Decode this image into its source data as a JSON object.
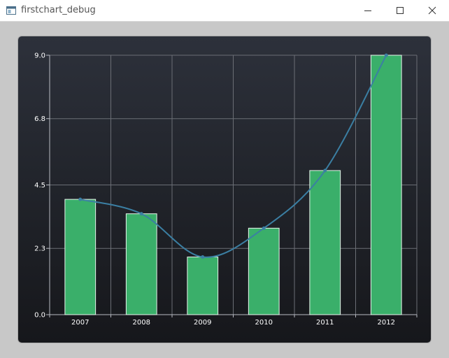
{
  "window": {
    "title": "firstchart_debug",
    "app_icon": "app-window-icon",
    "controls": {
      "minimize": "minimize-icon",
      "maximize": "maximize-icon",
      "close": "close-icon"
    }
  },
  "chart_data": {
    "type": "bar",
    "title": "",
    "xlabel": "",
    "ylabel": "",
    "categories": [
      "2007",
      "2008",
      "2009",
      "2010",
      "2011",
      "2012"
    ],
    "series": [
      {
        "type": "bar",
        "values": [
          4.0,
          3.5,
          2.0,
          3.0,
          5.0,
          9.0
        ],
        "color": "#3aaf6a"
      },
      {
        "type": "line",
        "values": [
          4.0,
          3.5,
          2.0,
          3.0,
          5.0,
          9.0
        ],
        "color": "#3b7fa3"
      }
    ],
    "ylim": [
      0.0,
      9.0
    ],
    "yticks": [
      "0.0",
      "2.3",
      "4.5",
      "6.8",
      "9.0"
    ],
    "grid": true,
    "legend": "none"
  }
}
